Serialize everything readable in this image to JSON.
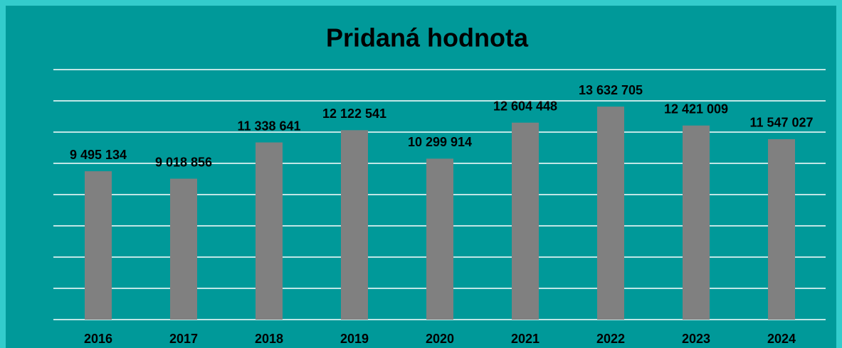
{
  "chart_data": {
    "type": "bar",
    "title": "Pridaná hodnota",
    "categories": [
      "2016",
      "2017",
      "2018",
      "2019",
      "2020",
      "2021",
      "2022",
      "2023",
      "2024"
    ],
    "values": [
      9495134,
      9018856,
      11338641,
      12122541,
      10299914,
      12604448,
      13632705,
      12421009,
      11547027
    ],
    "value_labels": [
      "9 495 134",
      "9 018 856",
      "11 338 641",
      "12 122 541",
      "10 299 914",
      "12 604 448",
      "13 632 705",
      "12 421 009",
      "11 547 027"
    ],
    "color": "#808080",
    "ylim": [
      0,
      16000000
    ],
    "yticks": [
      0,
      2000000,
      4000000,
      6000000,
      8000000,
      10000000,
      12000000,
      14000000,
      16000000
    ],
    "grid": true
  }
}
